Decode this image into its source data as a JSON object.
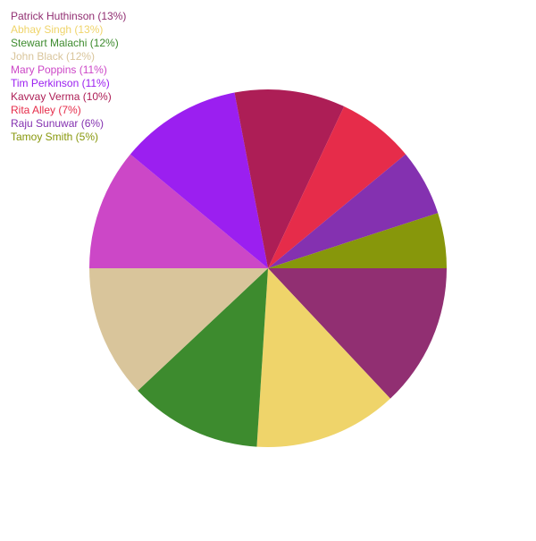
{
  "chart_data": {
    "type": "pie",
    "title": "",
    "legend_position": "top-left",
    "start_angle_deg": 0,
    "direction": "clockwise",
    "slices": [
      {
        "label": "Patrick Huthinson",
        "value": 13,
        "legend": "Patrick Huthinson (13%)",
        "color": "#912f72"
      },
      {
        "label": "Abhay Singh",
        "value": 13,
        "legend": "Abhay Singh (13%)",
        "color": "#efd46a"
      },
      {
        "label": "Stewart Malachi",
        "value": 12,
        "legend": "Stewart Malachi (12%)",
        "color": "#3d8b2e"
      },
      {
        "label": "John Black",
        "value": 12,
        "legend": "John Black (12%)",
        "color": "#d9c59b"
      },
      {
        "label": "Mary Poppins",
        "value": 11,
        "legend": "Mary Poppins (11%)",
        "color": "#cc47c7"
      },
      {
        "label": "Tim Perkinson",
        "value": 11,
        "legend": "Tim Perkinson (11%)",
        "color": "#9b1ff0"
      },
      {
        "label": "Kavvay Verma",
        "value": 10,
        "legend": "Kavvay Verma (10%)",
        "color": "#ad1e56"
      },
      {
        "label": "Rita Alley",
        "value": 7,
        "legend": "Rita Alley (7%)",
        "color": "#e62c4a"
      },
      {
        "label": "Raju Sunuwar",
        "value": 6,
        "legend": "Raju Sunuwar (6%)",
        "color": "#8431b0"
      },
      {
        "label": "Tamoy Smith",
        "value": 5,
        "legend": "Tamoy Smith (5%)",
        "color": "#87970b"
      }
    ]
  }
}
